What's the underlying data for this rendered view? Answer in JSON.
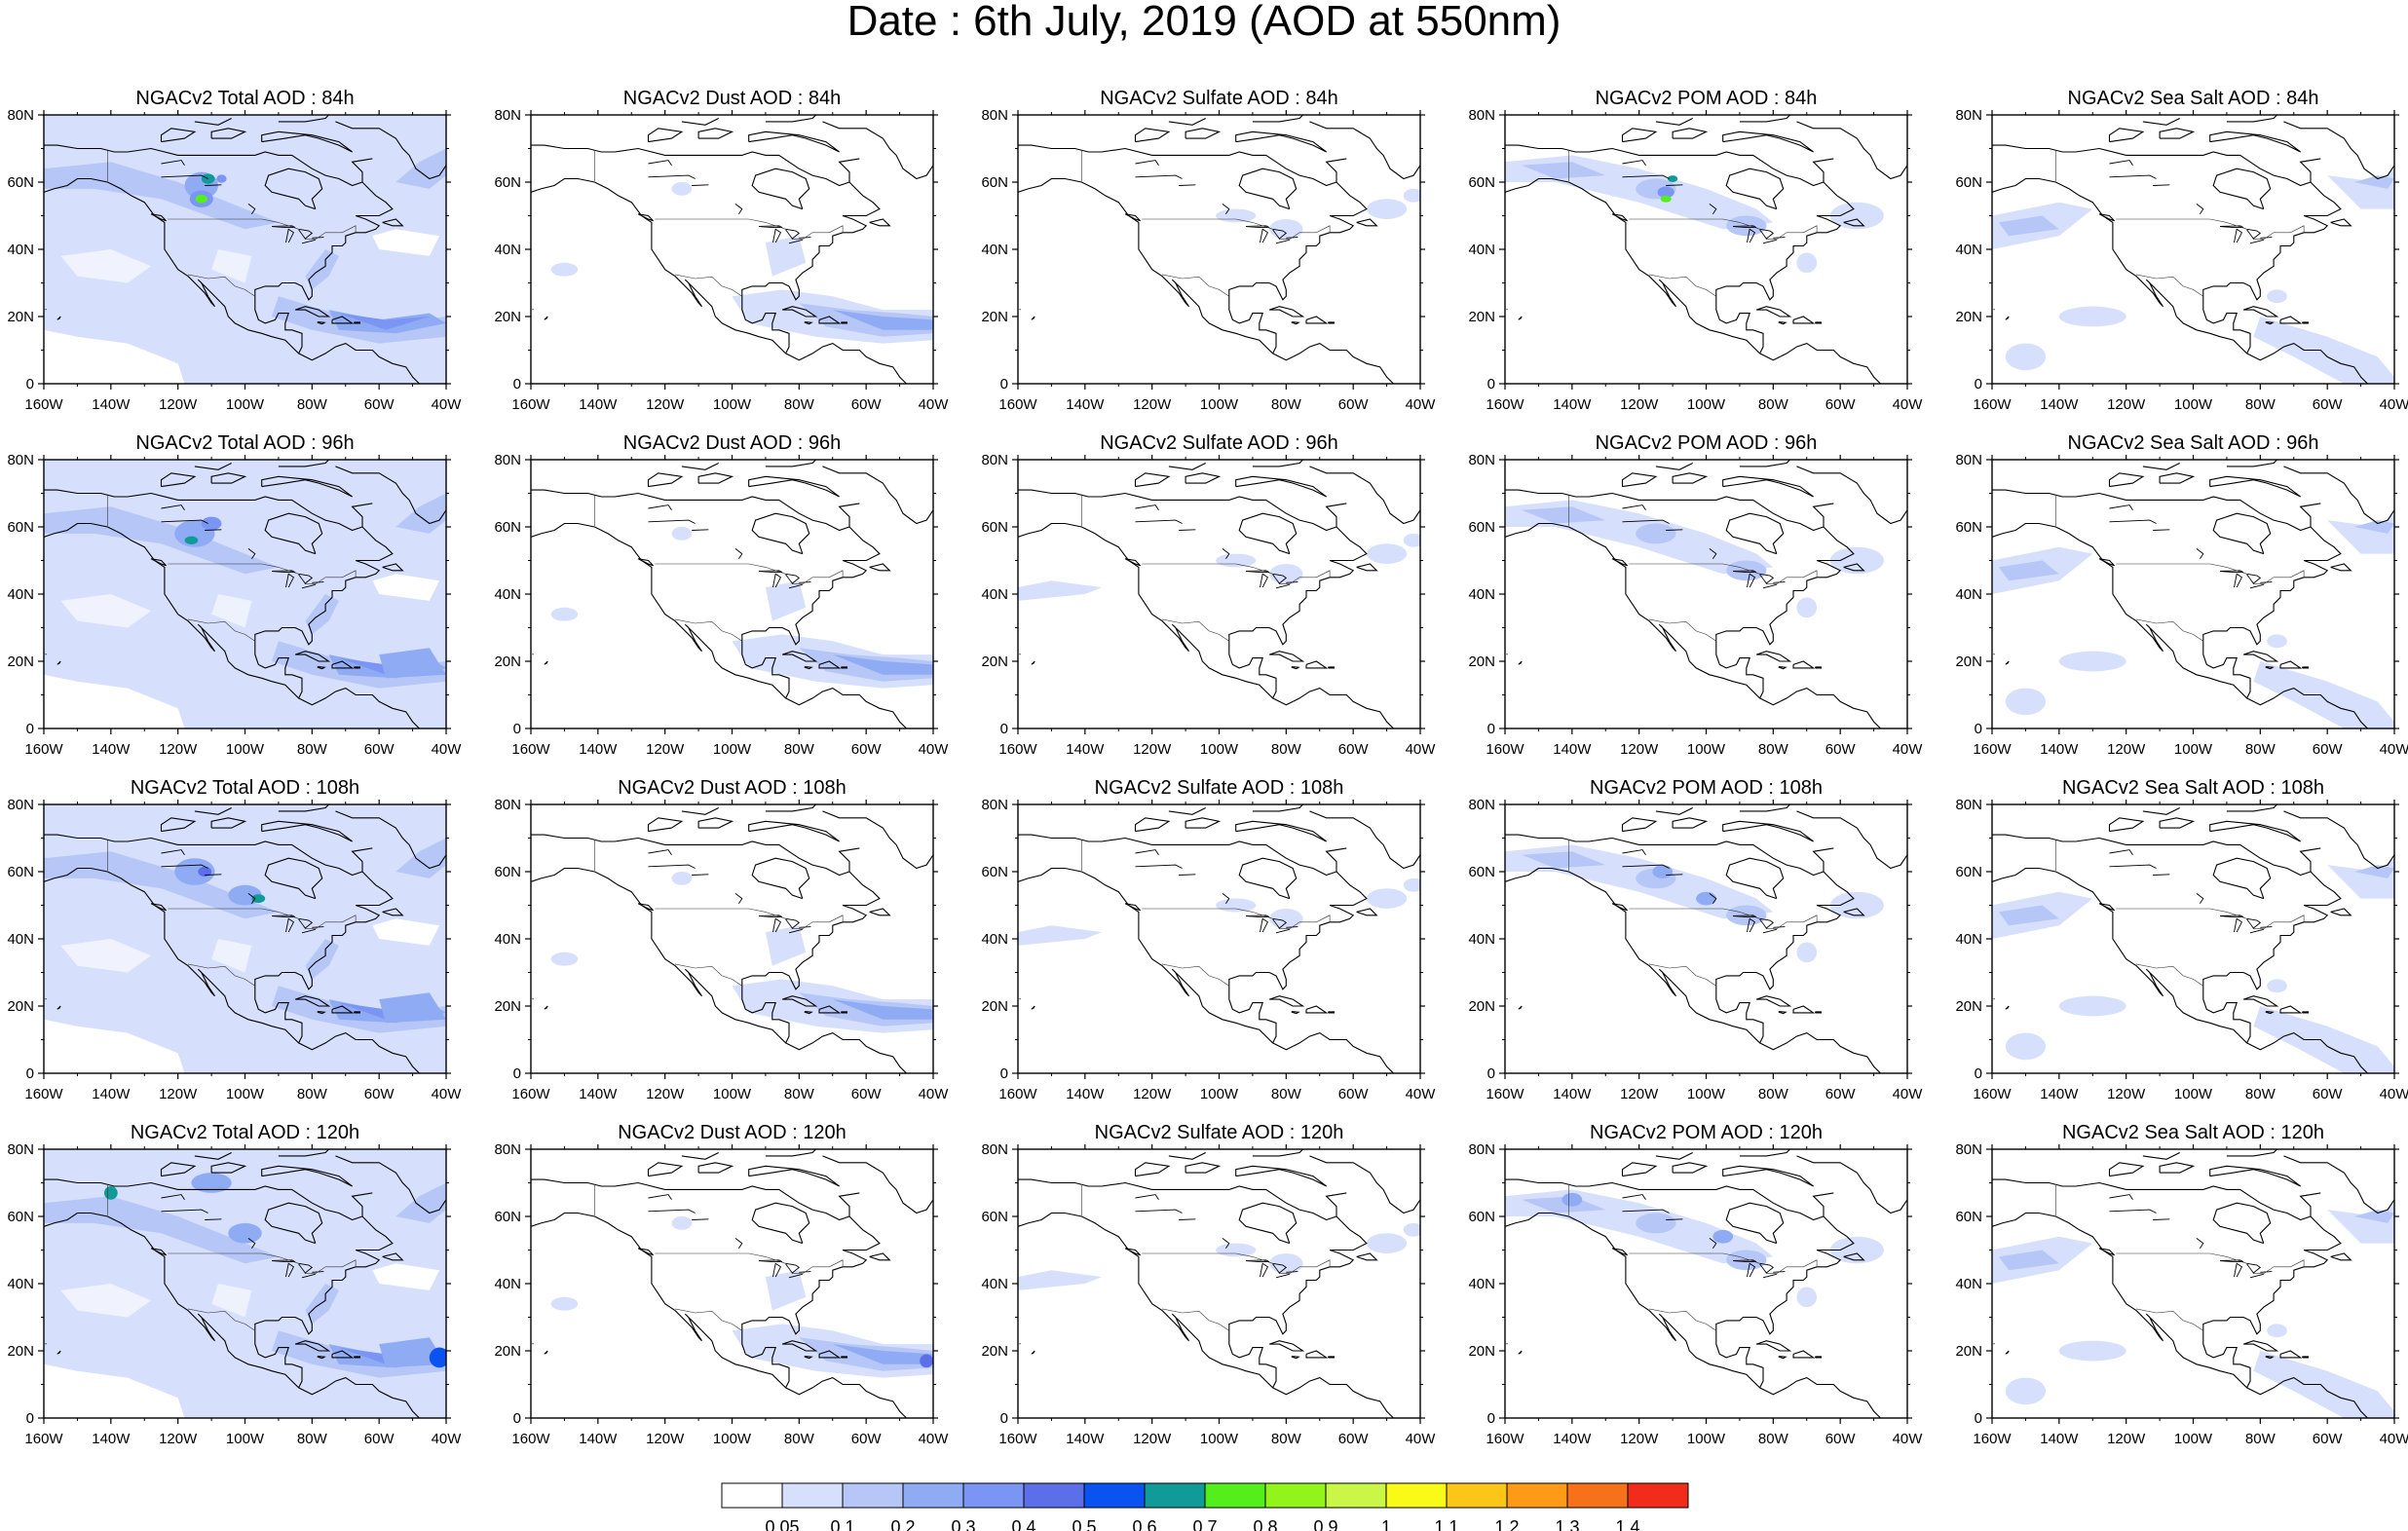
{
  "title": "Date : 6th July, 2019 (AOD at 550nm)",
  "species": [
    {
      "key": "total",
      "label": "NGACv2 Total AOD"
    },
    {
      "key": "dust",
      "label": "NGACv2 Dust AOD"
    },
    {
      "key": "sulfate",
      "label": "NGACv2 Sulfate AOD"
    },
    {
      "key": "pom",
      "label": "NGACv2 POM AOD"
    },
    {
      "key": "seasalt",
      "label": "NGACv2 Sea Salt AOD"
    }
  ],
  "forecast_hours": [
    "84h",
    "96h",
    "108h",
    "120h"
  ],
  "panel_titles": [
    [
      "NGACv2 Total AOD : 84h",
      "NGACv2 Dust AOD : 84h",
      "NGACv2 Sulfate AOD : 84h",
      "NGACv2 POM AOD : 84h",
      "NGACv2 Sea Salt AOD : 84h"
    ],
    [
      "NGACv2 Total AOD : 96h",
      "NGACv2 Dust AOD : 96h",
      "NGACv2 Sulfate AOD : 96h",
      "NGACv2 POM AOD : 96h",
      "NGACv2 Sea Salt AOD : 96h"
    ],
    [
      "NGACv2 Total AOD : 108h",
      "NGACv2 Dust AOD : 108h",
      "NGACv2 Sulfate AOD : 108h",
      "NGACv2 POM AOD : 108h",
      "NGACv2 Sea Salt AOD : 108h"
    ],
    [
      "NGACv2 Total AOD : 120h",
      "NGACv2 Dust AOD : 120h",
      "NGACv2 Sulfate AOD : 120h",
      "NGACv2 POM AOD : 120h",
      "NGACv2 Sea Salt  AOD : 120h"
    ]
  ],
  "lat_ticks": [
    "0",
    "20N",
    "40N",
    "60N",
    "80N"
  ],
  "lon_ticks": [
    "160W",
    "140W",
    "120W",
    "100W",
    "80W",
    "60W",
    "40W"
  ],
  "colorbar": {
    "labels": [
      "0.05",
      "0.1",
      "0.2",
      "0.3",
      "0.4",
      "0.5",
      "0.6",
      "0.7",
      "0.8",
      "0.9",
      "1",
      "1.1",
      "1.2",
      "1.3",
      "1.4"
    ],
    "colors": [
      "#ffffff",
      "#d6dffb",
      "#b5c6f7",
      "#8fabf4",
      "#7a95f3",
      "#5c6fe8",
      "#0b53f1",
      "#109b98",
      "#53ee1b",
      "#92f41b",
      "#c9f647",
      "#fafa19",
      "#fbc617",
      "#fe9a15",
      "#f7701a",
      "#f22c1a"
    ]
  },
  "domain_extent": {
    "lon": [
      -160,
      -40
    ],
    "lat": [
      0,
      80
    ]
  }
}
